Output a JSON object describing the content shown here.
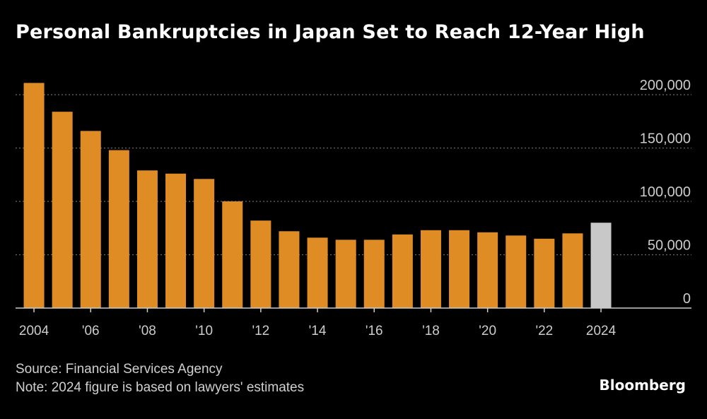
{
  "header": {
    "title": "Personal Bankruptcies in Japan Set to Reach 12-Year High"
  },
  "chart_data": {
    "type": "bar",
    "title": "Personal Bankruptcies in Japan Set to Reach 12-Year High",
    "categories": [
      "2004",
      "2005",
      "2006",
      "2007",
      "2008",
      "2009",
      "2010",
      "2011",
      "2012",
      "2013",
      "2014",
      "2015",
      "2016",
      "2017",
      "2018",
      "2019",
      "2020",
      "2021",
      "2022",
      "2023",
      "2024"
    ],
    "values": [
      211000,
      184000,
      166000,
      148000,
      129000,
      126000,
      121000,
      100000,
      82000,
      72000,
      66000,
      64000,
      64000,
      69000,
      73000,
      73000,
      71000,
      68000,
      65000,
      70000,
      80000
    ],
    "estimated_index": 20,
    "ylim": [
      0,
      200000
    ],
    "yticks": [
      0,
      50000,
      100000,
      150000,
      200000
    ],
    "ytick_labels": [
      "0",
      "50,000",
      "100,000",
      "150,000",
      "200,000"
    ],
    "xtick_labels": [
      "2004",
      "'06",
      "'08",
      "'10",
      "'12",
      "'14",
      "'16",
      "'18",
      "'20",
      "'22",
      "2024"
    ],
    "xtick_indices": [
      0,
      2,
      4,
      6,
      8,
      10,
      12,
      14,
      16,
      18,
      20
    ],
    "xlabel": "",
    "ylabel": "",
    "y_axis_position": "right",
    "grid": true,
    "colors": {
      "bar": "#e08c25",
      "estimate": "#c8c8c8",
      "grid": "#6a6a6a",
      "axis": "#cccccc",
      "text": "#cccccc"
    }
  },
  "footer": {
    "source": "Source: Financial Services Agency",
    "note": "Note: 2024 figure is based on lawyers' estimates",
    "brand": "Bloomberg"
  }
}
